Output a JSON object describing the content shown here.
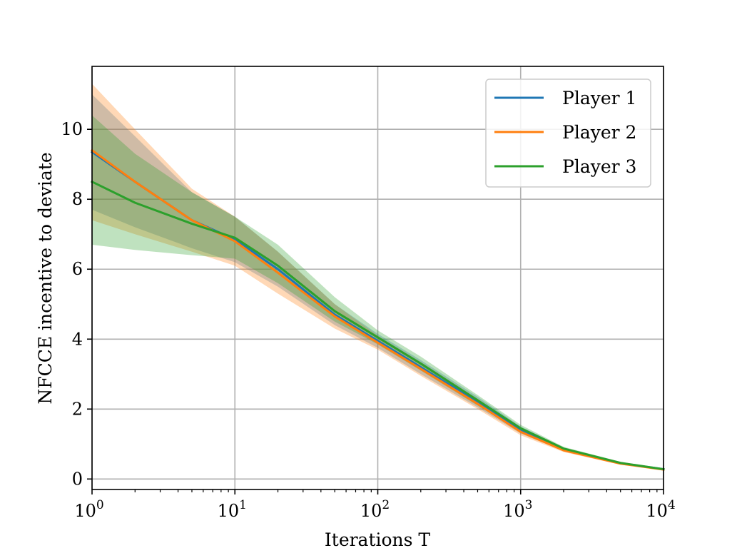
{
  "chart_data": {
    "type": "line",
    "xlabel": "Iterations T",
    "ylabel": "NFCCE incentive to deviate",
    "xscale": "log",
    "xlim": [
      1,
      10000
    ],
    "ylim": [
      -0.3,
      11.8
    ],
    "grid": true,
    "legend_position": "top-right",
    "x_tick_labels": [
      {
        "base": "10",
        "exp": "0"
      },
      {
        "base": "10",
        "exp": "1"
      },
      {
        "base": "10",
        "exp": "2"
      },
      {
        "base": "10",
        "exp": "3"
      },
      {
        "base": "10",
        "exp": "4"
      }
    ],
    "y_tick_labels": [
      "0",
      "2",
      "4",
      "6",
      "8",
      "10"
    ],
    "x": [
      1,
      2,
      5,
      10,
      20,
      50,
      100,
      200,
      500,
      1000,
      2000,
      5000,
      10000
    ],
    "series": [
      {
        "name": "Player 1",
        "color": "#1f77b4",
        "values": [
          9.35,
          8.5,
          7.4,
          6.85,
          6.0,
          4.7,
          3.95,
          3.2,
          2.2,
          1.4,
          0.85,
          0.45,
          0.28
        ],
        "lower": [
          7.7,
          7.2,
          6.6,
          6.2,
          5.5,
          4.4,
          3.75,
          3.0,
          2.05,
          1.3,
          0.8,
          0.42,
          0.26
        ],
        "upper": [
          11.0,
          9.8,
          8.2,
          7.5,
          6.5,
          5.0,
          4.15,
          3.4,
          2.35,
          1.5,
          0.9,
          0.48,
          0.3
        ]
      },
      {
        "name": "Player 2",
        "color": "#ff7f0e",
        "values": [
          9.4,
          8.5,
          7.4,
          6.8,
          5.9,
          4.65,
          3.9,
          3.15,
          2.15,
          1.35,
          0.82,
          0.44,
          0.27
        ],
        "lower": [
          7.4,
          7.0,
          6.5,
          6.1,
          5.3,
          4.3,
          3.7,
          2.95,
          2.0,
          1.25,
          0.77,
          0.41,
          0.25
        ],
        "upper": [
          11.3,
          10.0,
          8.3,
          7.5,
          6.5,
          5.0,
          4.1,
          3.35,
          2.3,
          1.45,
          0.88,
          0.47,
          0.29
        ]
      },
      {
        "name": "Player 3",
        "color": "#2ca02c",
        "values": [
          8.5,
          7.9,
          7.3,
          6.9,
          6.1,
          4.8,
          4.05,
          3.3,
          2.25,
          1.45,
          0.87,
          0.46,
          0.28
        ],
        "lower": [
          6.7,
          6.55,
          6.4,
          6.3,
          5.6,
          4.5,
          3.85,
          3.1,
          2.1,
          1.35,
          0.82,
          0.43,
          0.26
        ],
        "upper": [
          10.4,
          9.3,
          8.2,
          7.5,
          6.7,
          5.2,
          4.25,
          3.5,
          2.4,
          1.55,
          0.92,
          0.49,
          0.3
        ]
      }
    ]
  }
}
